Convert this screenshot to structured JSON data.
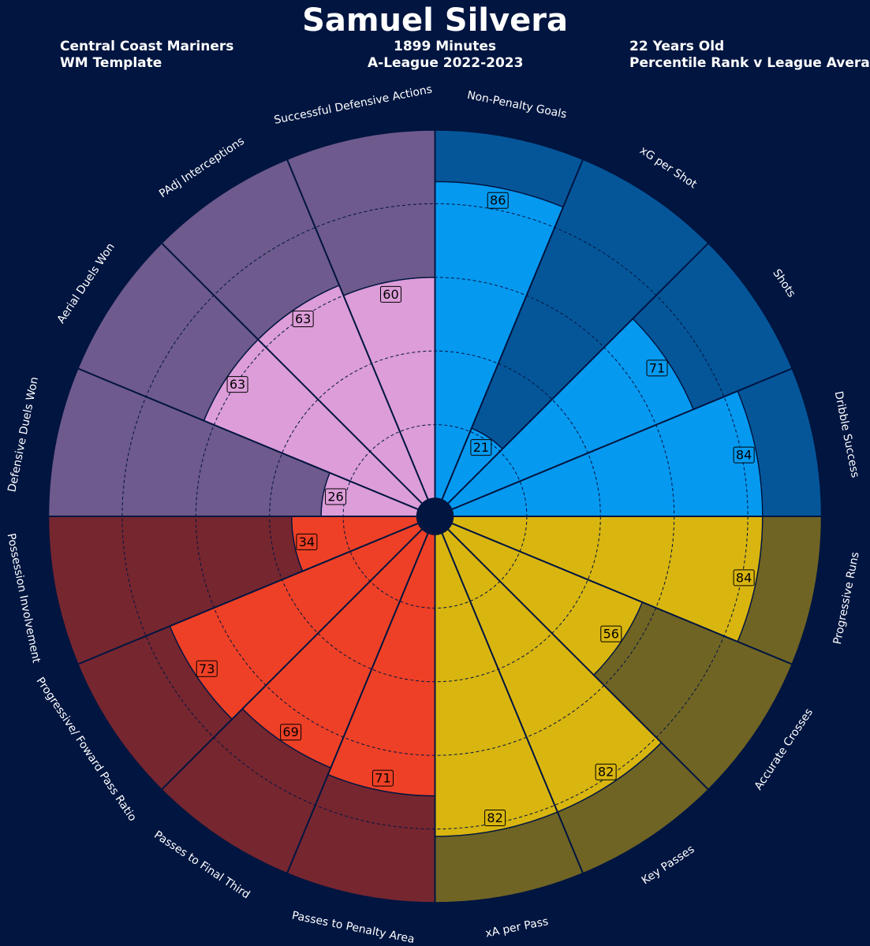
{
  "header": {
    "player_name": "Samuel Silvera",
    "club": "Central Coast Mariners",
    "template": "WM Template",
    "minutes": "1899 Minutes",
    "competition": "A-League 2022-2023",
    "age": "22 Years Old",
    "comparison": "Percentile Rank v League Average"
  },
  "colors": {
    "background": "#001540",
    "grid_line": "#001540",
    "attacking": "#0699f0",
    "attacking_bg": "#055699",
    "passing": "#d9b50f",
    "passing_bg": "#6f6424",
    "possession": "#ee4026",
    "possession_bg": "#76262f",
    "defending": "#dc9dd8",
    "defending_bg": "#6e5a8c"
  },
  "chart_data": {
    "type": "radar",
    "title": "Samuel Silvera",
    "scale": [
      0,
      100
    ],
    "rings": [
      20,
      40,
      60,
      80
    ],
    "start": "top",
    "direction": "clockwise",
    "categories": [
      {
        "name": "Non-Penalty Goals",
        "group": "attacking",
        "value": 86
      },
      {
        "name": "xG per Shot",
        "group": "attacking",
        "value": 21
      },
      {
        "name": "Shots",
        "group": "attacking",
        "value": 71
      },
      {
        "name": "Dribble Success",
        "group": "attacking",
        "value": 84
      },
      {
        "name": "Progressive Runs",
        "group": "passing",
        "value": 84
      },
      {
        "name": "Accurate Crosses",
        "group": "passing",
        "value": 56
      },
      {
        "name": "Key Passes",
        "group": "passing",
        "value": 82
      },
      {
        "name": "xA per Pass",
        "group": "passing",
        "value": 82
      },
      {
        "name": "Passes to Penalty Area",
        "group": "possession",
        "value": 71
      },
      {
        "name": "Passes to Final Third",
        "group": "possession",
        "value": 69
      },
      {
        "name": "Progressive/ Foward Pass Ratio",
        "group": "possession",
        "value": 73
      },
      {
        "name": "Possession Involvement",
        "group": "possession",
        "value": 34
      },
      {
        "name": "Defensive Duels Won",
        "group": "defending",
        "value": 26
      },
      {
        "name": "Aerial Duels Won",
        "group": "defending",
        "value": 63
      },
      {
        "name": "PAdj Interceptions",
        "group": "defending",
        "value": 63
      },
      {
        "name": "Successful Defensive Actions",
        "group": "defending",
        "value": 60
      }
    ]
  }
}
